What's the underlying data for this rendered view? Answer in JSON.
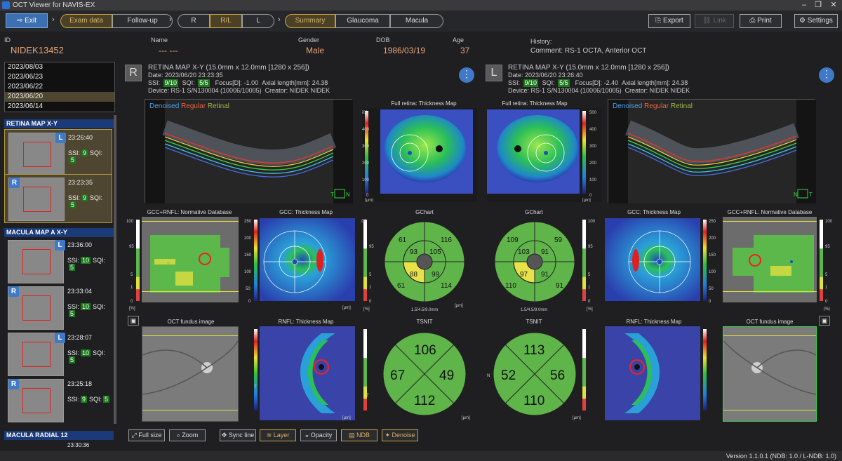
{
  "window": {
    "title": "OCT Viewer for NAVIS-EX"
  },
  "toolbar": {
    "exit": "Exit",
    "exam_data": "Exam data",
    "follow_up": "Follow-up",
    "r": "R",
    "rl": "R/L",
    "l": "L",
    "summary": "Summary",
    "glaucoma": "Glaucoma",
    "macula": "Macula",
    "export": "Export",
    "link": "Link",
    "print": "Print",
    "settings": "Settings"
  },
  "patient": {
    "id_label": "ID",
    "id": "NIDEK13452",
    "name_label": "Name",
    "name": "--- ---",
    "gender_label": "Gender",
    "gender": "Male",
    "dob_label": "DOB",
    "dob": "1986/03/19",
    "age_label": "Age",
    "age": "37",
    "history_label": "History:",
    "comment": "Comment:  RS-1 OCTA, Anterior OCT"
  },
  "dates": [
    "2023/08/03",
    "2023/06/23",
    "2023/06/22",
    "2023/06/20",
    "2023/06/14"
  ],
  "sections": {
    "retina": "RETINA MAP X-Y",
    "macula": "MACULA MAP A X-Y",
    "radial": "MACULA RADIAL 12"
  },
  "thumbs": [
    {
      "eye": "L",
      "time": "23:26:40",
      "ssi": "9",
      "sqi": "5"
    },
    {
      "eye": "R",
      "time": "23:23:35",
      "ssi": "9",
      "sqi": "5"
    },
    {
      "eye": "L",
      "time": "23:36:00",
      "ssi": "10",
      "sqi": "5"
    },
    {
      "eye": "R",
      "time": "23:33:04",
      "ssi": "10",
      "sqi": "5"
    },
    {
      "eye": "L",
      "time": "23:28:07",
      "ssi": "10",
      "sqi": "5"
    },
    {
      "eye": "R",
      "time": "23:25:18",
      "ssi": "9",
      "sqi": "5"
    }
  ],
  "thumb_labels": {
    "ssi": "SSI:",
    "sqi": "SQI:"
  },
  "last_time": "23:30:36",
  "right_eye": {
    "letter": "R",
    "title": "RETINA MAP X-Y (15.0mm x 12.0mm [1280 x 256])",
    "date": "Date: 2023/06/20 23:23:35",
    "ssi_label": "SSI:",
    "ssi": "9/10",
    "sqi_label": "SQI:",
    "sqi": "5/5",
    "focus": "Focus[D]: -1.00",
    "axial": "Axial length[mm]: 24.38",
    "device": "Device: RS-1 S/N130004 (10006/10005)",
    "creator": "Creator: NIDEK NIDEK",
    "gchart": {
      "top": "116",
      "top_left": "61",
      "inner_top_left": "93",
      "inner_top_right": "105",
      "inner_bot_left": "88",
      "inner_bot_right": "99",
      "bot_left": "61",
      "bot_right": "114"
    },
    "tsnit": {
      "top": "106",
      "left": "67",
      "right": "49",
      "bottom": "112"
    },
    "t_label": "T"
  },
  "left_eye": {
    "letter": "L",
    "title": "RETINA MAP X-Y (15.0mm x 12.0mm [1280 x 256])",
    "date": "Date: 2023/06/20 23:26:40",
    "ssi_label": "SSI:",
    "ssi": "9/10",
    "sqi_label": "SQI:",
    "sqi": "5/5",
    "focus": "Focus[D]: -2.40",
    "axial": "Axial length[mm]: 24.38",
    "device": "Device: RS-1 S/N130004 (10006/10005)",
    "creator": "Creator: NIDEK NIDEK",
    "gchart": {
      "top_left": "109",
      "top_right": "59",
      "inner_top_left": "103",
      "inner_top_right": "91",
      "inner_bot_left": "97",
      "inner_bot_right": "91",
      "bot_left": "110",
      "bot_right": "91"
    },
    "tsnit": {
      "top": "113",
      "left": "52",
      "right": "56",
      "bottom": "110"
    },
    "n_label": "N"
  },
  "bscan_legend": {
    "denoised": "Denoised",
    "regular": "Regular",
    "retinal": "Retinal"
  },
  "panel_titles": {
    "full_thickness": "Full retina: Thickness Map",
    "gcc_norm": "GCC+RNFL: Normative Database",
    "gcc_thick": "GCC: Thickness Map",
    "gchart": "GChart",
    "fundus": "OCT fundus image",
    "rnfl": "RNFL: Thickness Map",
    "tsnit": "TSNIT"
  },
  "scale": {
    "thick500": [
      "500",
      "400",
      "300",
      "200",
      "100",
      "0"
    ],
    "thick250": [
      "250",
      "200",
      "150",
      "100",
      "50",
      "0"
    ],
    "pct": [
      "100",
      "95",
      "5",
      "1",
      "0"
    ],
    "um": "[μm]",
    "pctunit": "[%]",
    "gchart_caption": "1.5/4.5/9.0mm"
  },
  "bottom_buttons": {
    "full_size": "Full size",
    "zoom": "Zoom",
    "sync_line": "Sync line",
    "layer": "Layer",
    "opacity": "Opacity",
    "ndb": "NDB",
    "denoise": "Denoise"
  },
  "footer": "Version 1.1.0.1 (NDB: 1.0 / L-NDB: 1.0)",
  "colors": {
    "accent": "#3f79c8",
    "gold": "#c7a447",
    "orange": "#e7a57a",
    "green_sector": "#5fb54a",
    "yellow_sector": "#e7e24a"
  }
}
